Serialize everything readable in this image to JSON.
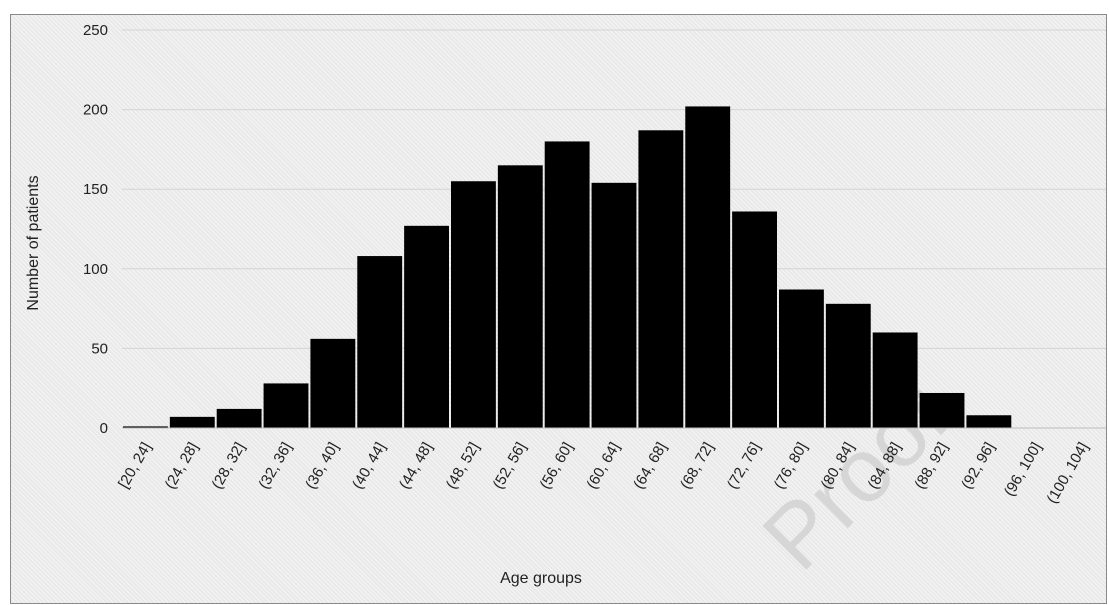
{
  "header_fragment": "",
  "chart_data": {
    "type": "bar",
    "title": "",
    "xlabel": "Age groups",
    "ylabel": "Number of patients",
    "ylim": [
      0,
      250
    ],
    "yticks": [
      0,
      50,
      100,
      150,
      200,
      250
    ],
    "grid": true,
    "legend": "none",
    "bar_color": "#000000",
    "categories": [
      "[20, 24]",
      "(24, 28]",
      "(28, 32]",
      "(32, 36]",
      "(36, 40]",
      "(40, 44]",
      "(44, 48]",
      "(48, 52]",
      "(52, 56]",
      "(56, 60]",
      "(60, 64]",
      "(64, 68]",
      "(68, 72]",
      "(72, 76]",
      "(76, 80]",
      "(80, 84]",
      "(84, 88]",
      "(88, 92]",
      "(92, 96]",
      "(96, 100]",
      "(100, 104]"
    ],
    "values": [
      1,
      7,
      12,
      28,
      56,
      108,
      127,
      155,
      165,
      180,
      154,
      187,
      202,
      136,
      87,
      78,
      60,
      22,
      8,
      0,
      0
    ]
  },
  "watermark_text": "Proof"
}
